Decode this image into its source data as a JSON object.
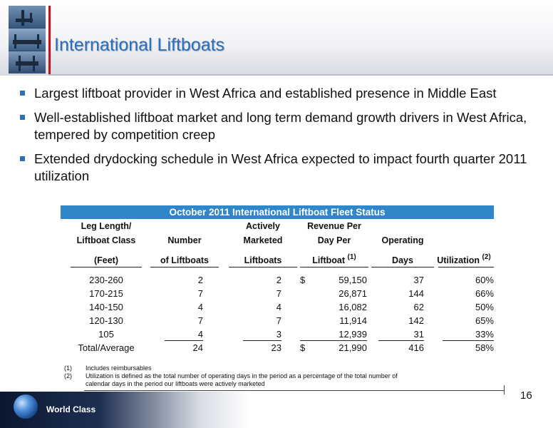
{
  "header": {
    "title": "International Liftboats"
  },
  "bullets": [
    "Largest liftboat provider in West Africa and established presence in Middle East",
    "Well-established liftboat market and long term demand growth drivers in West Africa, tempered by competition creep",
    "Extended drydocking schedule in West Africa expected to impact fourth quarter 2011 utilization"
  ],
  "table": {
    "title": "October 2011 International Liftboat Fleet Status",
    "headers": {
      "col0_l1": "Leg Length/",
      "col0_l2": "Liftboat Class",
      "col0_l3": "(Feet)",
      "col1_l2": "Number",
      "col1_l3": "of Liftboats",
      "col2_l1": "Actively",
      "col2_l2": "Marketed",
      "col2_l3": "Liftboats",
      "col3_l1": "Revenue Per",
      "col3_l2": "Day Per",
      "col3_l3": "Liftboat",
      "col3_sup": "(1)",
      "col4_l2": "Operating",
      "col4_l3": "Days",
      "col5_l3": "Utilization",
      "col5_sup": "(2)"
    },
    "rows": [
      {
        "cls": "230-260",
        "num": "2",
        "active": "2",
        "dollar": "$",
        "rev": "59,150",
        "days": "37",
        "util": "60%"
      },
      {
        "cls": "170-215",
        "num": "7",
        "active": "7",
        "dollar": "",
        "rev": "26,871",
        "days": "144",
        "util": "66%"
      },
      {
        "cls": "140-150",
        "num": "4",
        "active": "4",
        "dollar": "",
        "rev": "16,082",
        "days": "62",
        "util": "50%"
      },
      {
        "cls": "120-130",
        "num": "7",
        "active": "7",
        "dollar": "",
        "rev": "11,914",
        "days": "142",
        "util": "65%"
      },
      {
        "cls": "105",
        "num": "4",
        "active": "3",
        "dollar": "",
        "rev": "12,939",
        "days": "31",
        "util": "33%"
      }
    ],
    "total": {
      "cls": "Total/Average",
      "num": "24",
      "active": "23",
      "dollar": "$",
      "rev": "21,990",
      "days": "416",
      "util": "58%"
    }
  },
  "notes": [
    {
      "key": "(1)",
      "text": "Includes reimbursables"
    },
    {
      "key": "(2)",
      "text": "Utilization is defined as the total number of operating days in the period as a percentage of the total number of calendar days in the period our liftboats were actively marketed"
    }
  ],
  "footer": {
    "page_number": "16",
    "tagline": "World Class"
  }
}
